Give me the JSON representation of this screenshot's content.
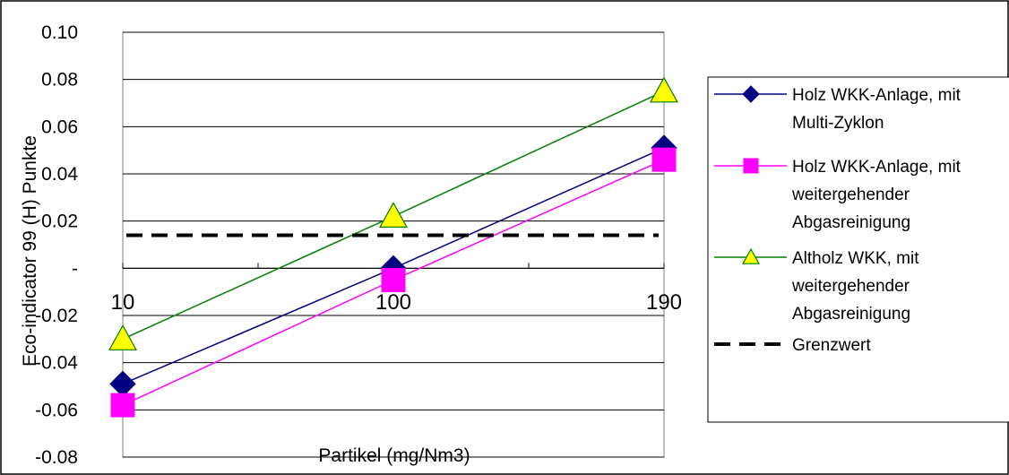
{
  "chart_data": {
    "type": "line",
    "title": "",
    "xlabel": "Partikel (mg/Nm3)",
    "ylabel": "Eco-indicator 99 (H) Punkte",
    "categories": [
      "10",
      "100",
      "190"
    ],
    "y_ticks": [
      "0.10",
      "0.08",
      "0.06",
      "0.04",
      "0.02",
      "-",
      "-0.02",
      "-0.04",
      "-0.06",
      "-0.08"
    ],
    "ylim": [
      -0.08,
      0.1
    ],
    "grid": true,
    "legend_position": "right",
    "series": [
      {
        "name": "Holz WKK-Anlage, mit Multi-Zyklon",
        "name_lines": [
          "Holz WKK-Anlage, mit",
          "Multi-Zyklon"
        ],
        "values": [
          -0.049,
          0.0,
          0.051
        ],
        "color": "#000080",
        "marker": "diamond",
        "marker_fill": "#000080"
      },
      {
        "name": "Holz WKK-Anlage, mit weitergehender Abgasreinigung",
        "name_lines": [
          "Holz WKK-Anlage, mit",
          "weitergehender",
          "Abgasreinigung"
        ],
        "values": [
          -0.058,
          -0.005,
          0.046
        ],
        "color": "#ff00ff",
        "marker": "square",
        "marker_fill": "#ff00ff"
      },
      {
        "name": "Altholz WKK, mit weitergehender Abgasreinigung",
        "name_lines": [
          "Altholz WKK, mit",
          "weitergehender",
          "Abgasreinigung"
        ],
        "values": [
          -0.03,
          0.022,
          0.075
        ],
        "color": "#008000",
        "marker": "triangle",
        "marker_fill": "#ffff00"
      },
      {
        "name": "Grenzwert",
        "name_lines": [
          "Grenzwert"
        ],
        "values": [
          0.014,
          0.014,
          0.014
        ],
        "color": "#000000",
        "marker": "none",
        "dashed": true
      }
    ]
  }
}
